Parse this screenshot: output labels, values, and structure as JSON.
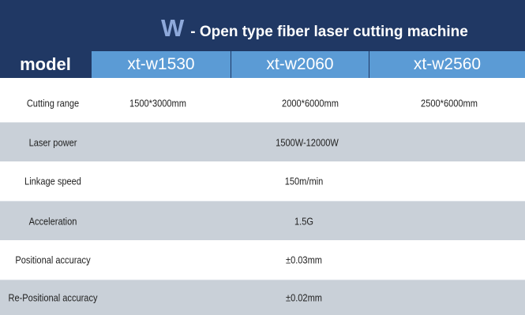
{
  "title": {
    "letter": "W",
    "text": "- Open type fiber laser cutting machine"
  },
  "header": {
    "label": "model",
    "models": [
      "xt-w1530",
      "xt-w2060",
      "xt-w2560"
    ]
  },
  "rows": [
    {
      "label": "Cutting range",
      "values": [
        "1500*3000mm",
        "2000*6000mm",
        "2500*6000mm"
      ]
    },
    {
      "label": "Laser power",
      "value": "1500W-12000W"
    },
    {
      "label": "Linkage speed",
      "value": "150m/min"
    },
    {
      "label": "Acceleration",
      "value": "1.5G"
    },
    {
      "label": "Positional accuracy",
      "value": "±0.03mm"
    },
    {
      "label": "Re-Positional accuracy",
      "value": "±0.02mm"
    }
  ],
  "colors": {
    "navy": "#203864",
    "blue": "#5b9bd5",
    "gray": "#c9d0d8"
  }
}
